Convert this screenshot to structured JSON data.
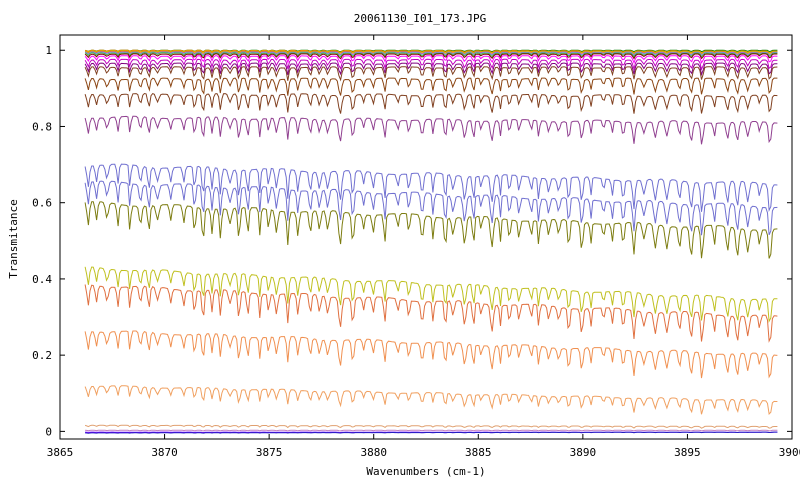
{
  "chart_data": {
    "type": "line",
    "title": "20061130_I01_173.JPG",
    "xlabel": "Wavenumbers (cm-1)",
    "ylabel": "Transmitance",
    "xlim": [
      3865,
      3900
    ],
    "ylim": [
      -0.02,
      1.04
    ],
    "x_ticks": [
      3865,
      3870,
      3875,
      3880,
      3885,
      3890,
      3895,
      3900
    ],
    "x_tick_labels": [
      "3865",
      "3870",
      "3875",
      "3880",
      "3885",
      "3890",
      "3895",
      "3900"
    ],
    "y_ticks": [
      0,
      0.2,
      0.4,
      0.6,
      0.8,
      1
    ],
    "y_tick_labels": [
      "0",
      "0.2",
      "0.4",
      "0.6",
      "0.8",
      "1"
    ],
    "grid": false,
    "legend": "none",
    "x_range_data": [
      3866.2,
      3899.3
    ],
    "series": [
      {
        "color": "#008000",
        "start": 1.0,
        "end": 1.0,
        "depth": 0.004
      },
      {
        "color": "#ff8000",
        "start": 1.0,
        "end": 0.998,
        "depth": 0.005
      },
      {
        "color": "#c0c000",
        "start": 0.998,
        "end": 0.997,
        "depth": 0.006
      },
      {
        "color": "#ff4040",
        "start": 0.996,
        "end": 0.995,
        "depth": 0.008
      },
      {
        "color": "#8080ff",
        "start": 0.995,
        "end": 0.994,
        "depth": 0.008
      },
      {
        "color": "#40c040",
        "start": 0.993,
        "end": 0.992,
        "depth": 0.01
      },
      {
        "color": "#800000",
        "start": 0.99,
        "end": 0.99,
        "depth": 0.012
      },
      {
        "color": "#ff00ff",
        "start": 0.985,
        "end": 0.985,
        "depth": 0.018
      },
      {
        "color": "#c000c0",
        "start": 0.975,
        "end": 0.975,
        "depth": 0.025
      },
      {
        "color": "#800080",
        "start": 0.965,
        "end": 0.965,
        "depth": 0.03
      },
      {
        "color": "#804020",
        "start": 0.955,
        "end": 0.955,
        "depth": 0.035
      },
      {
        "color": "#8b4513",
        "start": 0.925,
        "end": 0.925,
        "depth": 0.045
      },
      {
        "color": "#804020",
        "start": 0.885,
        "end": 0.88,
        "depth": 0.05
      },
      {
        "color": "#904090",
        "start": 0.825,
        "end": 0.81,
        "depth": 0.06
      },
      {
        "color": "#7070d0",
        "start": 0.7,
        "end": 0.65,
        "depth": 0.08
      },
      {
        "color": "#7070d0",
        "start": 0.655,
        "end": 0.59,
        "depth": 0.085
      },
      {
        "color": "#7c7c10",
        "start": 0.6,
        "end": 0.53,
        "depth": 0.09
      },
      {
        "color": "#c0c020",
        "start": 0.43,
        "end": 0.345,
        "depth": 0.07
      },
      {
        "color": "#e07040",
        "start": 0.385,
        "end": 0.3,
        "depth": 0.08
      },
      {
        "color": "#f09050",
        "start": 0.265,
        "end": 0.2,
        "depth": 0.07
      },
      {
        "color": "#f0a060",
        "start": 0.12,
        "end": 0.08,
        "depth": 0.04
      },
      {
        "color": "#e0a070",
        "start": 0.016,
        "end": 0.013,
        "depth": 0.005
      },
      {
        "color": "#c080c0",
        "start": 0.003,
        "end": 0.003,
        "depth": 0.002
      },
      {
        "color": "#8000ff",
        "start": -0.002,
        "end": -0.002,
        "depth": 0.001
      },
      {
        "color": "#2020c0",
        "start": -0.004,
        "end": -0.002,
        "depth": 0.001
      }
    ]
  }
}
